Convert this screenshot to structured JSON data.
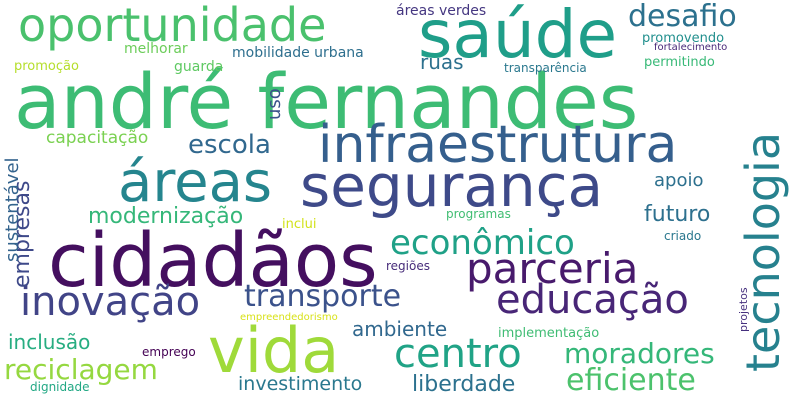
{
  "words": [
    {
      "text": "andré fernandes",
      "color": "#3dbc74"
    },
    {
      "text": "segurança",
      "color": "#3e4a89"
    },
    {
      "text": "cidadãos",
      "color": "#440f5f"
    },
    {
      "text": "infraestrutura",
      "color": "#355f8d"
    },
    {
      "text": "saúde",
      "color": "#1f9e89"
    },
    {
      "text": "oportunidade",
      "color": "#4ac16d"
    },
    {
      "text": "áreas",
      "color": "#25858e"
    },
    {
      "text": "tecnologia",
      "color": "#26818e"
    },
    {
      "text": "vida",
      "color": "#9fda3a"
    },
    {
      "text": "parceria",
      "color": "#481a6c"
    },
    {
      "text": "educação",
      "color": "#482677"
    },
    {
      "text": "centro",
      "color": "#20a386"
    },
    {
      "text": "econômico",
      "color": "#1fa187"
    },
    {
      "text": "inovação",
      "color": "#414487"
    },
    {
      "text": "transporte",
      "color": "#3b528b"
    },
    {
      "text": "desafio",
      "color": "#2c718e"
    },
    {
      "text": "eficiente",
      "color": "#4cc26c"
    },
    {
      "text": "moradores",
      "color": "#35b779"
    },
    {
      "text": "reciclagem",
      "color": "#95d840"
    },
    {
      "text": "modernização",
      "color": "#35b779"
    },
    {
      "text": "escola",
      "color": "#31688e"
    },
    {
      "text": "futuro",
      "color": "#2d708e"
    },
    {
      "text": "investimento",
      "color": "#2a788e"
    },
    {
      "text": "liberdade",
      "color": "#2c718e"
    },
    {
      "text": "ambiente",
      "color": "#31688e"
    },
    {
      "text": "inclusão",
      "color": "#27ad81"
    },
    {
      "text": "empresas",
      "color": "#3e4989"
    },
    {
      "text": "sustentável",
      "color": "#33638d"
    },
    {
      "text": "ruas",
      "color": "#2d718e"
    },
    {
      "text": "apoio",
      "color": "#2d708e"
    },
    {
      "text": "capacitação",
      "color": "#7ad151"
    },
    {
      "text": "uso",
      "color": "#3b528b"
    },
    {
      "text": "áreas verdes",
      "color": "#453781"
    },
    {
      "text": "mobilidade urbana",
      "color": "#2e6f8e"
    },
    {
      "text": "melhorar",
      "color": "#6ccd5a"
    },
    {
      "text": "guarda",
      "color": "#5ec962"
    },
    {
      "text": "promoção",
      "color": "#b5de2b"
    },
    {
      "text": "transparência",
      "color": "#2a788e"
    },
    {
      "text": "promovendo",
      "color": "#218f8d"
    },
    {
      "text": "permitindo",
      "color": "#38b977"
    },
    {
      "text": "fortalecimento",
      "color": "#482878"
    },
    {
      "text": "programas",
      "color": "#40bd72"
    },
    {
      "text": "inclui",
      "color": "#d2e21b"
    },
    {
      "text": "criado",
      "color": "#2a778e"
    },
    {
      "text": "regiões",
      "color": "#472c7a"
    },
    {
      "text": "projetos",
      "color": "#46307e"
    },
    {
      "text": "implementação",
      "color": "#3fbc73"
    },
    {
      "text": "empreendedorismo",
      "color": "#d8e219"
    },
    {
      "text": "emprego",
      "color": "#440154"
    },
    {
      "text": "dignidade",
      "color": "#22a884"
    }
  ]
}
